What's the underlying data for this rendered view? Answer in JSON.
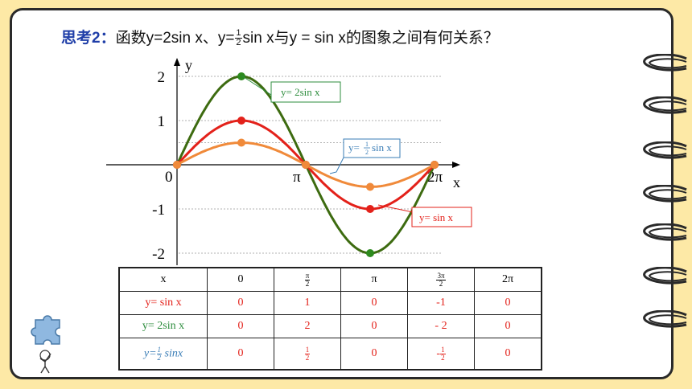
{
  "heading": {
    "label": "思考2",
    "colon": "：",
    "text_a": "函数y=2sin x、y=",
    "frac_num": "1",
    "frac_den": "2",
    "text_b": "sin x与y = sin x的图象之间有何关系？"
  },
  "colors": {
    "sin": "#e3211a",
    "two_sin": "#3d6b10",
    "half_sin": "#f08a3a",
    "callout_blue": "#3a7db6",
    "callout_green": "#2c8c3c",
    "background": "#fde9a6"
  },
  "chart_data": {
    "type": "line",
    "xlabel": "x",
    "ylabel": "y",
    "y_ticks": [
      "2",
      "1",
      "-1",
      "-2"
    ],
    "x_tick_labels": [
      "0",
      "π",
      "2π"
    ],
    "x": [
      "0",
      "π/2",
      "π",
      "3π/2",
      "2π"
    ],
    "series": [
      {
        "name": "y= 2sin x",
        "values": [
          0,
          2,
          0,
          -2,
          0
        ]
      },
      {
        "name": "y= sin x",
        "values": [
          0,
          1,
          0,
          -1,
          0
        ]
      },
      {
        "name": "y= 1/2 sin x",
        "values": [
          0,
          0.5,
          0,
          -0.5,
          0
        ]
      }
    ],
    "callouts": {
      "two_sin": "y= 2sin x",
      "sin": "y= sin x",
      "half_prefix": "y=",
      "half_num": "1",
      "half_den": "2",
      "half_suffix": "sin x"
    }
  },
  "table": {
    "header": [
      "x",
      "0",
      "π/2",
      "π",
      "3π/2",
      "2π"
    ],
    "rows": [
      {
        "label": "y= sin x",
        "cells": [
          "0",
          "1",
          "0",
          "-1",
          "0"
        ]
      },
      {
        "label": "y= 2sin x",
        "cells": [
          "0",
          "2",
          "0",
          "- 2",
          "0"
        ]
      },
      {
        "label_prefix": "y=",
        "label_num": "1",
        "label_den": "2",
        "label_suffix": "sinx",
        "cells": [
          "0",
          "1/2",
          "0",
          "-1/2",
          "0"
        ]
      }
    ],
    "frac": {
      "pi": "π",
      "two": "2",
      "three_pi": "3π",
      "one": "1",
      "minus": "-"
    }
  }
}
